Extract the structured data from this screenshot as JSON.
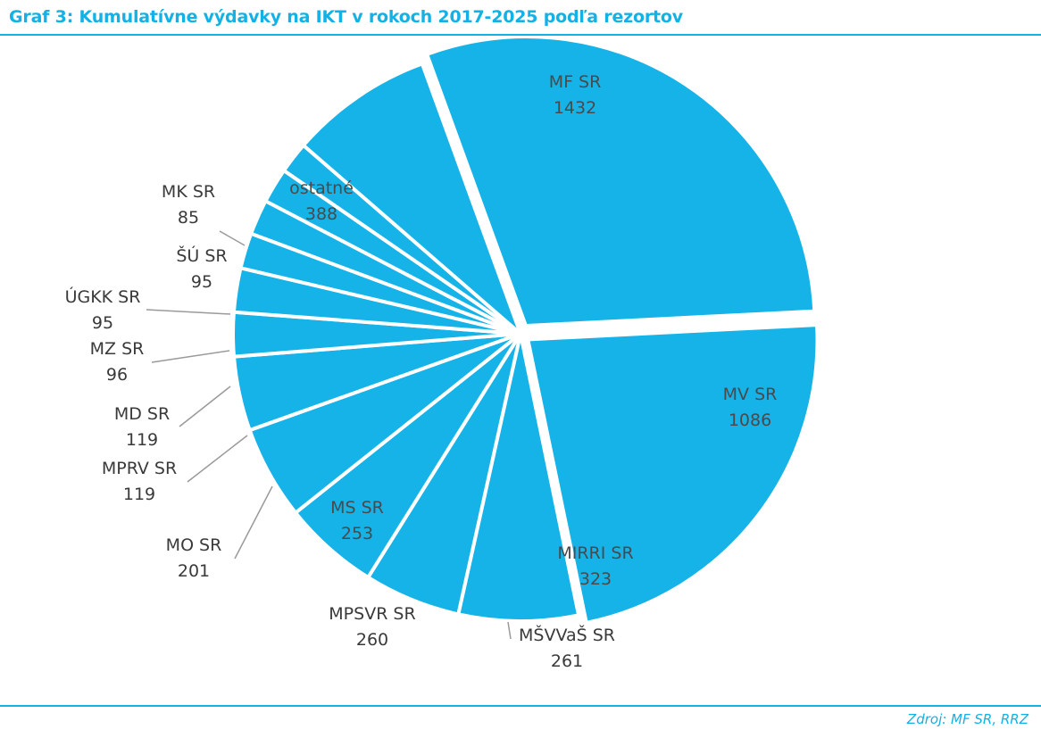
{
  "title": "Graf 3: Kumulatívne výdavky na IKT v rokoch 2017-2025 podľa rezortov",
  "source": "Zdroj: MF SR, RRZ",
  "colors": {
    "accent": "#12b1e6",
    "slice": "#16b3e8",
    "text": "#3a3a3a",
    "leader": "#9a9a9a"
  },
  "chart_data": {
    "type": "pie",
    "title": "Graf 3: Kumulatívne výdavky na IKT v rokoch 2017-2025 podľa rezortov",
    "slices": [
      {
        "label": "MF SR",
        "value": 1432,
        "exploded": true
      },
      {
        "label": "MV SR",
        "value": 1086,
        "exploded": true
      },
      {
        "label": "MIRRI SR",
        "value": 323
      },
      {
        "label": "MŠVVaŠ SR",
        "value": 261
      },
      {
        "label": "MPSVR SR",
        "value": 260
      },
      {
        "label": "MS SR",
        "value": 253
      },
      {
        "label": "MO SR",
        "value": 201
      },
      {
        "label": "MPRV SR",
        "value": 119
      },
      {
        "label": "MD SR",
        "value": 119
      },
      {
        "label": "MZ SR",
        "value": 96
      },
      {
        "label": "ÚGKK SR",
        "value": 95
      },
      {
        "label": "ŠÚ SR",
        "value": 95
      },
      {
        "label": "MK SR",
        "value": 85
      },
      {
        "label": "ostatné",
        "value": 388
      }
    ]
  }
}
